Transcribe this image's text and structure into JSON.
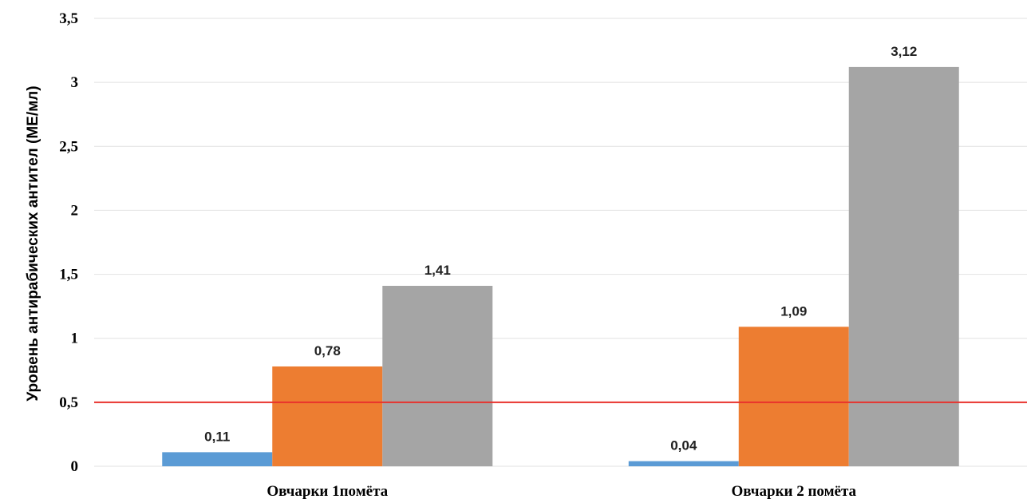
{
  "chart_data": {
    "type": "bar",
    "title": "",
    "xlabel": "",
    "ylabel": "Уровень антирабических антител (МЕ/мл)",
    "ylim": [
      0,
      3.5
    ],
    "yticks": [
      0,
      0.5,
      1,
      1.5,
      2,
      2.5,
      3,
      3.5
    ],
    "ytick_labels": [
      "0",
      "0,5",
      "1",
      "1,5",
      "2",
      "2,5",
      "3",
      "3,5"
    ],
    "grid": true,
    "legend": "none",
    "categories": [
      "Овчарки 1помёта",
      "Овчарки 2 помёта"
    ],
    "series": [
      {
        "color": "#5b9bd5",
        "values": [
          0.11,
          0.04
        ],
        "labels": [
          "0,11",
          "0,04"
        ]
      },
      {
        "color": "#ed7d31",
        "values": [
          0.78,
          1.09
        ],
        "labels": [
          "0,78",
          "1,09"
        ]
      },
      {
        "color": "#a5a5a5",
        "values": [
          1.41,
          3.12
        ],
        "labels": [
          "1,41",
          "3,12"
        ]
      }
    ],
    "reference_line": {
      "value": 0.5,
      "color": "#e8312c"
    }
  }
}
